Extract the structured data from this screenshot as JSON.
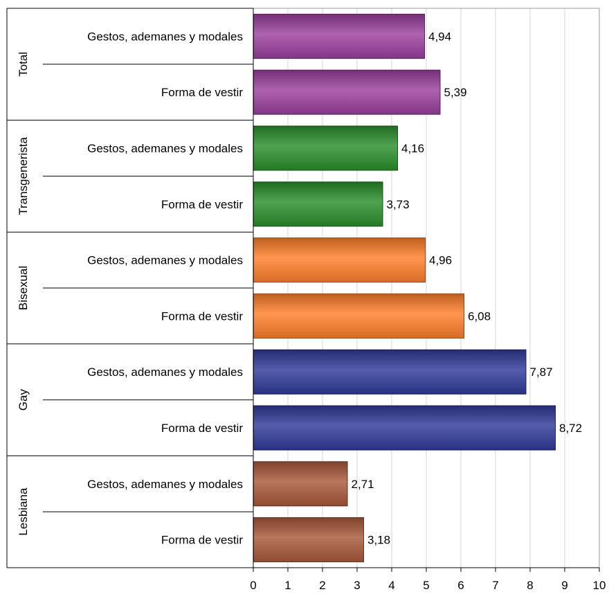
{
  "chart_data": {
    "type": "bar",
    "orientation": "horizontal",
    "title": "",
    "xlabel": "",
    "ylabel": "",
    "xlim": [
      0,
      10
    ],
    "x_ticks": [
      "0",
      "1",
      "2",
      "3",
      "4",
      "5",
      "6",
      "7",
      "8",
      "9",
      "10"
    ],
    "grid": "vertical",
    "legend": "none",
    "groups": [
      {
        "name": "Total",
        "color": "#9b3f9e",
        "bars": [
          {
            "label": "Gestos, ademanes y modales",
            "value": 4.94,
            "value_label": "4,94"
          },
          {
            "label": "Forma de vestir",
            "value": 5.39,
            "value_label": "5,39"
          }
        ]
      },
      {
        "name": "Transgenerista",
        "color": "#2a8f2a",
        "bars": [
          {
            "label": "Gestos, ademanes y modales",
            "value": 4.16,
            "value_label": "4,16"
          },
          {
            "label": "Forma de vestir",
            "value": 3.73,
            "value_label": "3,73"
          }
        ]
      },
      {
        "name": "Bisexual",
        "color": "#ff7f2a",
        "bars": [
          {
            "label": "Gestos, ademanes y modales",
            "value": 4.96,
            "value_label": "4,96"
          },
          {
            "label": "Forma de vestir",
            "value": 6.08,
            "value_label": "6,08"
          }
        ]
      },
      {
        "name": "Gay",
        "color": "#303a9a",
        "bars": [
          {
            "label": "Gestos, ademanes y modales",
            "value": 7.87,
            "value_label": "7,87"
          },
          {
            "label": "Forma de vestir",
            "value": 8.72,
            "value_label": "8,72"
          }
        ]
      },
      {
        "name": "Lesbiana",
        "color": "#a9583a",
        "bars": [
          {
            "label": "Gestos, ademanes y modales",
            "value": 2.71,
            "value_label": "2,71"
          },
          {
            "label": "Forma de vestir",
            "value": 3.18,
            "value_label": "3,18"
          }
        ]
      }
    ]
  }
}
